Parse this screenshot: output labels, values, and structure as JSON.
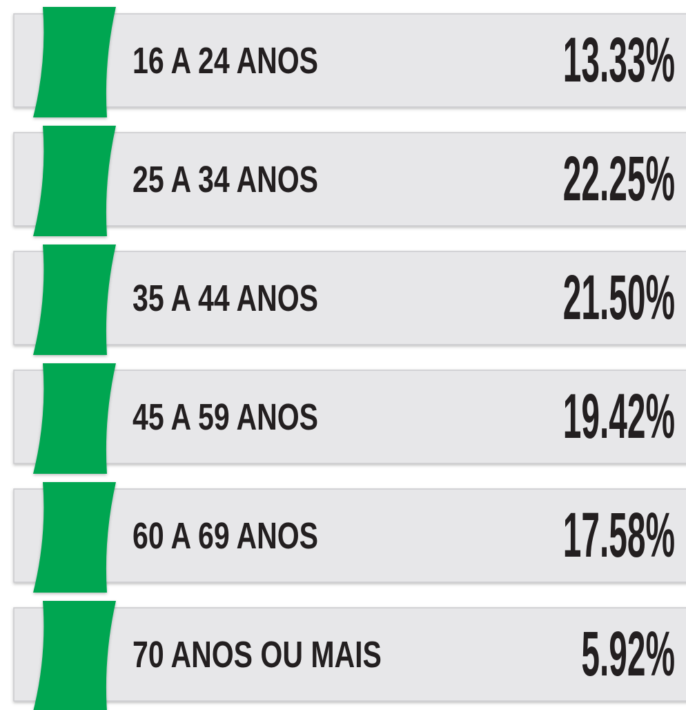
{
  "rows": [
    {
      "label": "16 A 24 ANOS",
      "value": "13.33%"
    },
    {
      "label": "25 A 34 ANOS",
      "value": "22.25%"
    },
    {
      "label": "35 A 44 ANOS",
      "value": "21.50%"
    },
    {
      "label": "45 A 59 ANOS",
      "value": "19.42%"
    },
    {
      "label": "60 A 69 ANOS",
      "value": "17.58%"
    },
    {
      "label": "70 ANOS OU MAIS",
      "value": "5.92%"
    }
  ]
}
